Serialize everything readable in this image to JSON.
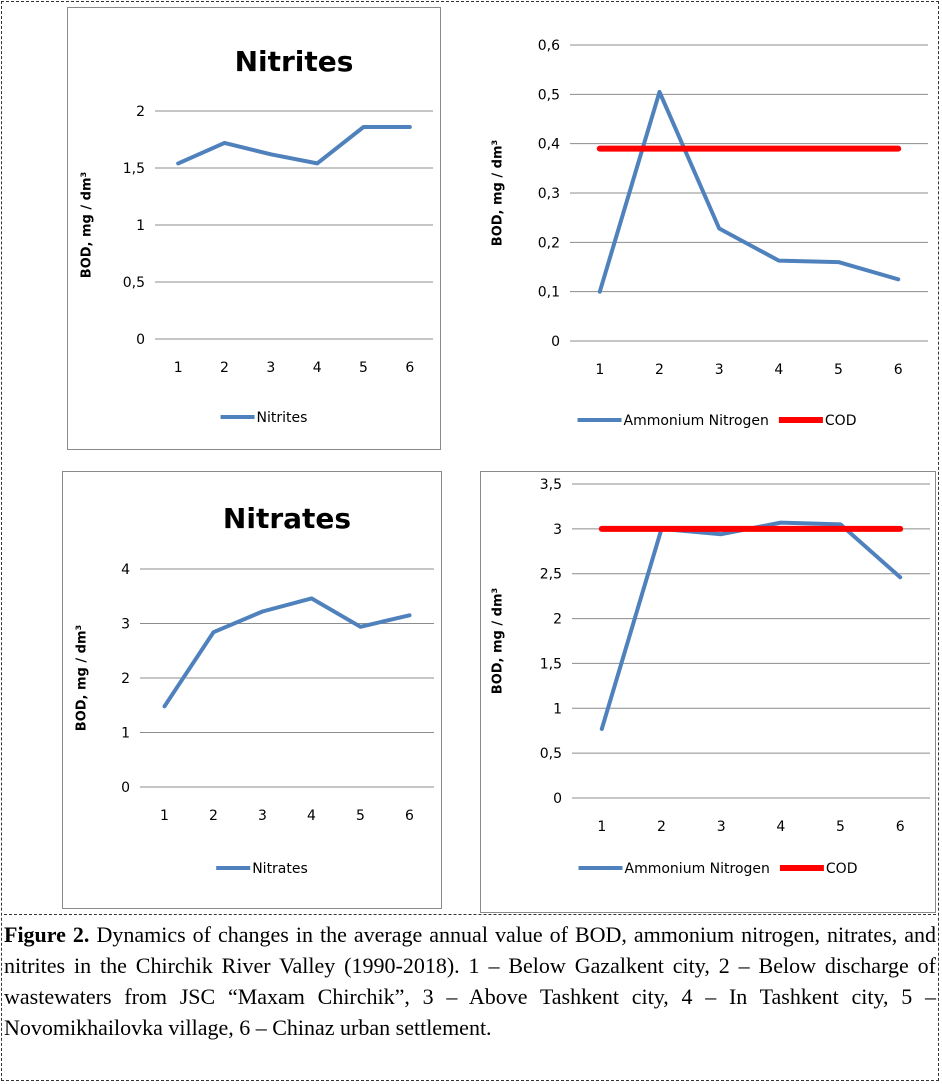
{
  "chart_data": [
    {
      "type": "line",
      "title": "Nitrites",
      "ylabel": "BOD,  mg / dm³",
      "categories": [
        "1",
        "2",
        "3",
        "4",
        "5",
        "6"
      ],
      "ylim": [
        0,
        2
      ],
      "yticks": [
        "0",
        "0,5",
        "1",
        "1,5",
        "2"
      ],
      "grid": true,
      "legend": "bottom",
      "series": [
        {
          "name": "Nitrites",
          "color": "#4f81bd",
          "values": [
            1.54,
            1.72,
            1.62,
            1.54,
            1.86,
            1.86
          ]
        }
      ]
    },
    {
      "type": "line",
      "title": "",
      "ylabel": "BOD,  mg / dm³",
      "categories": [
        "1",
        "2",
        "3",
        "4",
        "5",
        "6"
      ],
      "ylim": [
        0,
        0.6
      ],
      "yticks": [
        "0",
        "0,1",
        "0,2",
        "0,3",
        "0,4",
        "0,5",
        "0,6"
      ],
      "grid": true,
      "legend": "bottom",
      "series": [
        {
          "name": "Ammonium Nitrogen",
          "color": "#4f81bd",
          "values": [
            0.1,
            0.505,
            0.228,
            0.163,
            0.16,
            0.125
          ]
        },
        {
          "name": "COD",
          "color": "#ff0000",
          "values": [
            0.39,
            0.39,
            0.39,
            0.39,
            0.39,
            0.39
          ]
        }
      ]
    },
    {
      "type": "line",
      "title": "Nitrates",
      "ylabel": "BOD,  mg / dm³",
      "categories": [
        "1",
        "2",
        "3",
        "4",
        "5",
        "6"
      ],
      "ylim": [
        0,
        4
      ],
      "yticks": [
        "0",
        "1",
        "2",
        "3",
        "4"
      ],
      "grid": true,
      "legend": "bottom",
      "series": [
        {
          "name": "Nitrates",
          "color": "#4f81bd",
          "values": [
            1.48,
            2.84,
            3.22,
            3.46,
            2.94,
            3.15
          ]
        }
      ]
    },
    {
      "type": "line",
      "title": "",
      "ylabel": "BOD,  mg / dm³",
      "categories": [
        "1",
        "2",
        "3",
        "4",
        "5",
        "6"
      ],
      "ylim": [
        0,
        3.5
      ],
      "yticks": [
        "0",
        "0,5",
        "1",
        "1,5",
        "2",
        "2,5",
        "3",
        "3,5"
      ],
      "grid": true,
      "legend": "bottom",
      "series": [
        {
          "name": "Ammonium Nitrogen",
          "color": "#4f81bd",
          "values": [
            0.77,
            3.0,
            2.94,
            3.07,
            3.05,
            2.46
          ]
        },
        {
          "name": "COD",
          "color": "#ff0000",
          "values": [
            3.0,
            3.0,
            3.0,
            3.0,
            3.0,
            3.0
          ]
        }
      ]
    }
  ],
  "caption": {
    "label": "Figure 2.",
    "text": " Dynamics of changes in the average annual value of BOD, ammonium nitrogen, nitrates, and nitrites in the Chirchik River Valley (1990-2018). 1 – Below Gazalkent city, 2 – Below discharge of wastewaters from JSC “Maxam Chirchik”, 3 – Above Tashkent city, 4 – In Tashkent city, 5 – Novomikhailovka village, 6 – Chinaz urban settlement."
  }
}
